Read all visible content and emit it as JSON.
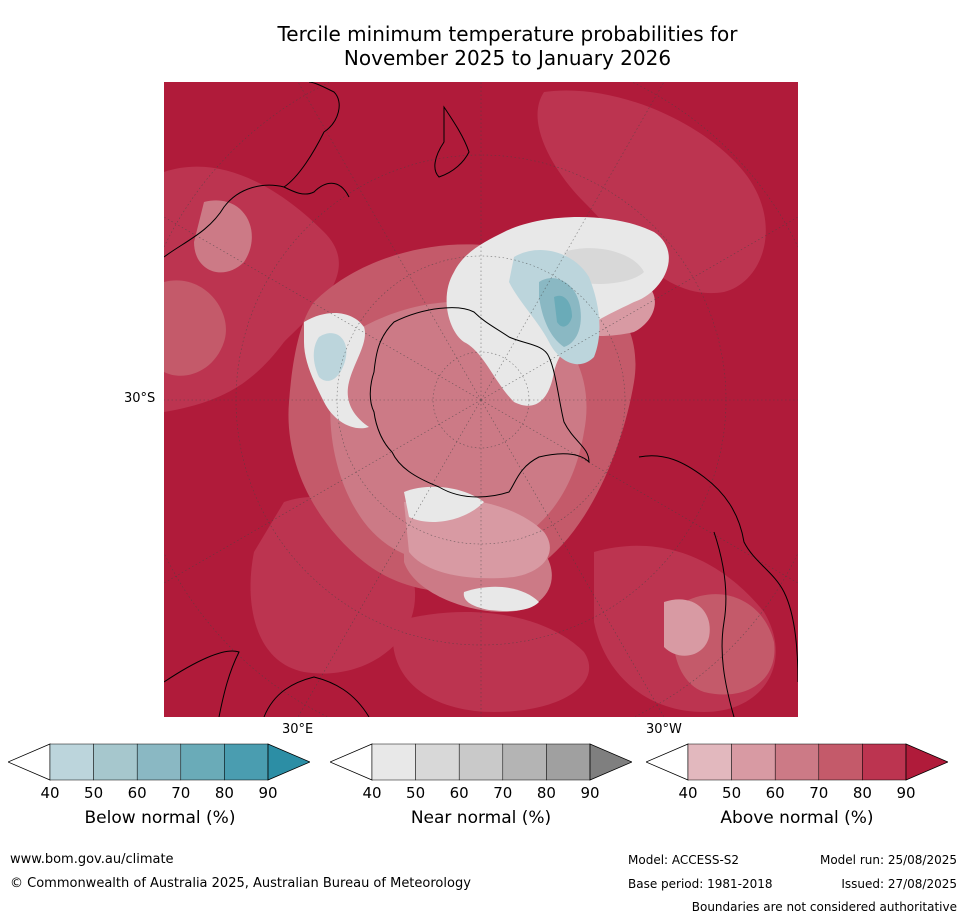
{
  "title": {
    "line1": "Tercile minimum temperature probabilities for",
    "line2": "November 2025 to January 2026"
  },
  "map": {
    "projection": "south-polar-stereographic",
    "label_left": "30°S",
    "label_30e": "30°E",
    "label_30w": "30°W"
  },
  "colorbars": [
    {
      "name": "below",
      "title": "Below normal (%)",
      "ticks": [
        "40",
        "50",
        "60",
        "70",
        "80",
        "90"
      ],
      "colors": [
        "#ffffff",
        "#bcd5dc",
        "#a6c7cd",
        "#8ab8c3",
        "#6aabb8",
        "#4a9db0",
        "#2c8ea5"
      ]
    },
    {
      "name": "near",
      "title": "Near normal (%)",
      "ticks": [
        "40",
        "50",
        "60",
        "70",
        "80",
        "90"
      ],
      "colors": [
        "#ffffff",
        "#e8e8e8",
        "#d8d8d8",
        "#c9c9c9",
        "#b4b4b4",
        "#a0a0a0",
        "#7f7f7f"
      ]
    },
    {
      "name": "above",
      "title": "Above normal (%)",
      "ticks": [
        "40",
        "50",
        "60",
        "70",
        "80",
        "90"
      ],
      "colors": [
        "#ffffff",
        "#e2b8be",
        "#d89aa3",
        "#cc7a86",
        "#c45a6a",
        "#bc3450",
        "#b01b3a"
      ]
    }
  ],
  "footer": {
    "website": "www.bom.gov.au/climate",
    "copyright": "© Commonwealth of Australia 2025, Australian Bureau of Meteorology",
    "model": "Model: ACCESS-S2",
    "model_run": "Model run: 25/08/2025",
    "base_period": "Base period: 1981-2018",
    "issued": "Issued: 27/08/2025",
    "boundaries": "Boundaries are not considered authoritative"
  }
}
